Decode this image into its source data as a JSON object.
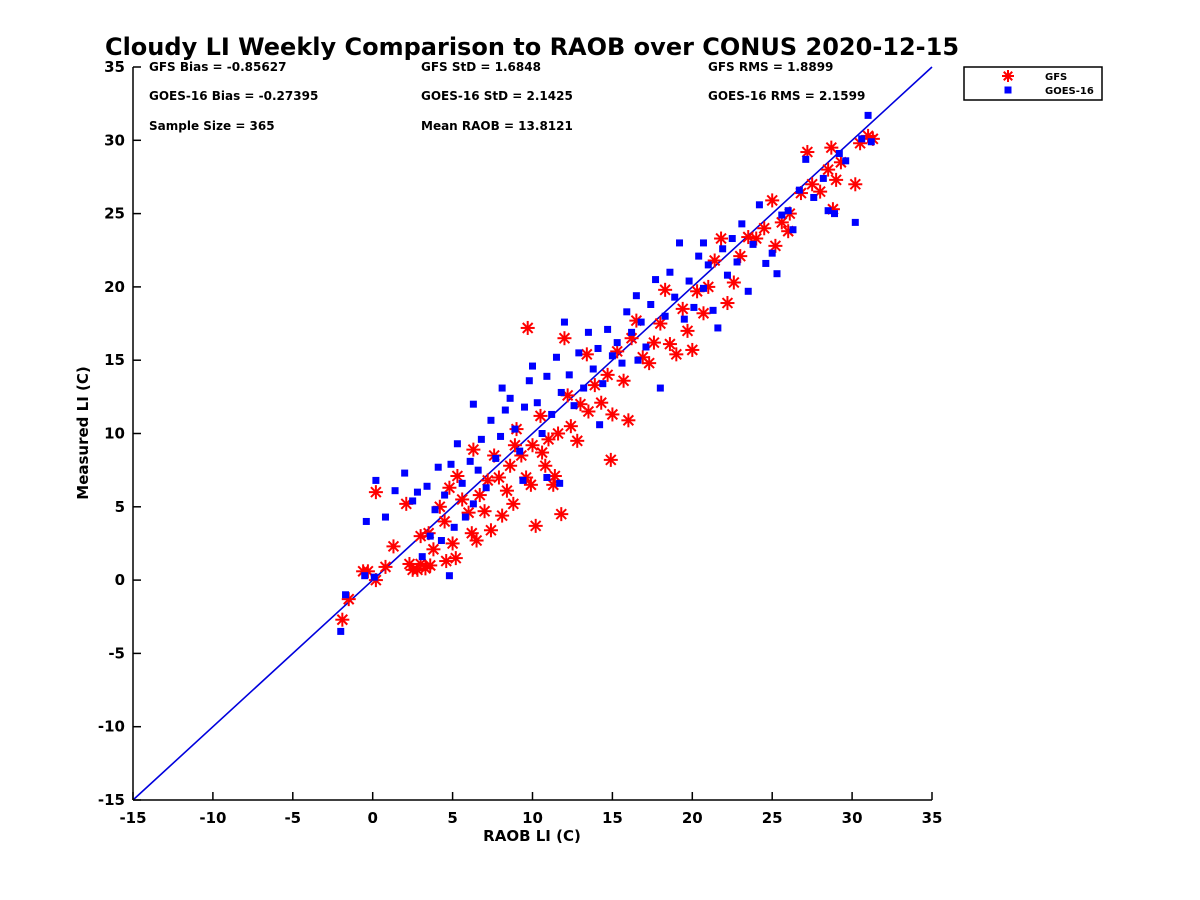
{
  "chart_data": {
    "type": "scatter",
    "title": "Cloudy LI Weekly Comparison to RAOB over CONUS 2020-12-15",
    "xlabel": "RAOB LI (C)",
    "ylabel": "Measured LI (C)",
    "xlim": [
      -15,
      35
    ],
    "ylim": [
      -15,
      35
    ],
    "xticks": [
      -15,
      -10,
      -5,
      0,
      5,
      10,
      15,
      20,
      25,
      30,
      35
    ],
    "yticks": [
      -15,
      -10,
      -5,
      0,
      5,
      10,
      15,
      20,
      25,
      30,
      35
    ],
    "grid": false,
    "legend_position": "outside-top-right",
    "reference_line": {
      "x": [
        -15,
        35
      ],
      "y": [
        -15,
        35
      ],
      "color": "#0000dd"
    },
    "stats": [
      {
        "id": "gfs-bias",
        "text": "GFS Bias = -0.85627",
        "col": 0,
        "row": 0
      },
      {
        "id": "gfs-std",
        "text": "GFS StD = 1.6848",
        "col": 1,
        "row": 0
      },
      {
        "id": "gfs-rms",
        "text": "GFS RMS = 1.8899",
        "col": 2,
        "row": 0
      },
      {
        "id": "goes-bias",
        "text": "GOES-16 Bias = -0.27395",
        "col": 0,
        "row": 1
      },
      {
        "id": "goes-std",
        "text": "GOES-16 StD = 2.1425",
        "col": 1,
        "row": 1
      },
      {
        "id": "goes-rms",
        "text": "GOES-16 RMS = 2.1599",
        "col": 2,
        "row": 1
      },
      {
        "id": "sample-size",
        "text": "Sample Size = 365",
        "col": 0,
        "row": 2
      },
      {
        "id": "mean-raob",
        "text": "Mean RAOB = 13.8121",
        "col": 1,
        "row": 2
      }
    ],
    "series": [
      {
        "name": "GFS",
        "marker": "asterisk",
        "color": "#ff0000",
        "points": [
          [
            -1.9,
            -2.7
          ],
          [
            -1.5,
            -1.3
          ],
          [
            -0.6,
            0.6
          ],
          [
            -0.3,
            0.6
          ],
          [
            0.2,
            0.0
          ],
          [
            0.2,
            6.0
          ],
          [
            0.8,
            0.9
          ],
          [
            1.3,
            2.3
          ],
          [
            2.1,
            5.2
          ],
          [
            2.3,
            1.1
          ],
          [
            2.5,
            0.7
          ],
          [
            2.8,
            0.7
          ],
          [
            3.0,
            1.1
          ],
          [
            3.0,
            3.0
          ],
          [
            3.3,
            0.8
          ],
          [
            3.5,
            3.2
          ],
          [
            3.6,
            1.0
          ],
          [
            3.8,
            2.1
          ],
          [
            4.2,
            5.0
          ],
          [
            4.5,
            4.0
          ],
          [
            4.6,
            1.3
          ],
          [
            4.8,
            6.3
          ],
          [
            5.0,
            2.5
          ],
          [
            5.2,
            1.5
          ],
          [
            5.3,
            7.1
          ],
          [
            5.6,
            5.5
          ],
          [
            6.0,
            4.6
          ],
          [
            6.2,
            3.2
          ],
          [
            6.5,
            2.7
          ],
          [
            6.3,
            8.9
          ],
          [
            6.7,
            5.8
          ],
          [
            7.0,
            4.7
          ],
          [
            7.2,
            6.8
          ],
          [
            7.4,
            3.4
          ],
          [
            7.6,
            8.5
          ],
          [
            7.9,
            7.0
          ],
          [
            8.1,
            4.4
          ],
          [
            8.4,
            6.1
          ],
          [
            8.6,
            7.8
          ],
          [
            8.8,
            5.2
          ],
          [
            9.0,
            10.3
          ],
          [
            9.3,
            8.5
          ],
          [
            9.6,
            7.0
          ],
          [
            9.7,
            17.2
          ],
          [
            9.9,
            6.5
          ],
          [
            10.2,
            3.7
          ],
          [
            10.0,
            9.2
          ],
          [
            10.5,
            11.2
          ],
          [
            10.8,
            7.8
          ],
          [
            11.0,
            9.6
          ],
          [
            11.3,
            6.5
          ],
          [
            11.6,
            10.0
          ],
          [
            11.8,
            4.5
          ],
          [
            12.0,
            16.5
          ],
          [
            12.2,
            12.6
          ],
          [
            12.4,
            10.5
          ],
          [
            12.8,
            9.5
          ],
          [
            13.0,
            12.0
          ],
          [
            13.4,
            15.4
          ],
          [
            13.5,
            11.5
          ],
          [
            13.9,
            13.3
          ],
          [
            14.3,
            12.1
          ],
          [
            14.7,
            14.0
          ],
          [
            14.9,
            8.2
          ],
          [
            15.0,
            11.3
          ],
          [
            15.3,
            15.6
          ],
          [
            15.7,
            13.6
          ],
          [
            16.0,
            10.9
          ],
          [
            16.2,
            16.5
          ],
          [
            16.5,
            17.7
          ],
          [
            16.9,
            15.2
          ],
          [
            17.3,
            14.8
          ],
          [
            17.6,
            16.2
          ],
          [
            18.0,
            17.5
          ],
          [
            18.3,
            19.8
          ],
          [
            18.6,
            16.1
          ],
          [
            19.0,
            15.4
          ],
          [
            19.4,
            18.5
          ],
          [
            19.7,
            17.0
          ],
          [
            20.0,
            15.7
          ],
          [
            20.3,
            19.7
          ],
          [
            20.7,
            18.2
          ],
          [
            21.0,
            20.0
          ],
          [
            21.4,
            21.8
          ],
          [
            21.8,
            23.3
          ],
          [
            22.2,
            18.9
          ],
          [
            22.6,
            20.3
          ],
          [
            23.0,
            22.1
          ],
          [
            23.5,
            23.4
          ],
          [
            24.0,
            23.3
          ],
          [
            24.5,
            24.0
          ],
          [
            25.0,
            25.9
          ],
          [
            25.2,
            22.8
          ],
          [
            25.6,
            24.4
          ],
          [
            26.0,
            23.8
          ],
          [
            26.1,
            25.0
          ],
          [
            26.8,
            26.4
          ],
          [
            27.2,
            29.2
          ],
          [
            27.5,
            27.0
          ],
          [
            28.0,
            26.5
          ],
          [
            28.5,
            28.0
          ],
          [
            28.8,
            25.3
          ],
          [
            28.7,
            29.5
          ],
          [
            29.0,
            27.3
          ],
          [
            29.3,
            28.5
          ],
          [
            30.2,
            27.0
          ],
          [
            30.5,
            29.8
          ],
          [
            31.0,
            30.3
          ],
          [
            31.3,
            30.1
          ],
          [
            10.6,
            8.7
          ],
          [
            11.4,
            7.1
          ],
          [
            8.9,
            9.2
          ]
        ]
      },
      {
        "name": "GOES-16",
        "marker": "square",
        "color": "#0000ff",
        "points": [
          [
            -2.0,
            -3.5
          ],
          [
            -1.7,
            -1.0
          ],
          [
            -0.5,
            0.3
          ],
          [
            -0.4,
            4.0
          ],
          [
            0.1,
            0.2
          ],
          [
            0.2,
            6.8
          ],
          [
            0.8,
            4.3
          ],
          [
            1.4,
            6.1
          ],
          [
            2.0,
            7.3
          ],
          [
            2.5,
            5.4
          ],
          [
            2.8,
            6.0
          ],
          [
            3.1,
            1.6
          ],
          [
            3.4,
            6.4
          ],
          [
            3.6,
            3.0
          ],
          [
            3.9,
            4.8
          ],
          [
            4.1,
            7.7
          ],
          [
            4.3,
            2.7
          ],
          [
            4.5,
            5.8
          ],
          [
            4.8,
            0.3
          ],
          [
            4.9,
            7.9
          ],
          [
            5.1,
            3.6
          ],
          [
            5.3,
            9.3
          ],
          [
            5.6,
            6.6
          ],
          [
            5.8,
            4.3
          ],
          [
            6.1,
            8.1
          ],
          [
            6.3,
            5.2
          ],
          [
            6.6,
            7.5
          ],
          [
            6.8,
            9.6
          ],
          [
            7.1,
            6.3
          ],
          [
            7.4,
            10.9
          ],
          [
            7.7,
            8.3
          ],
          [
            8.0,
            9.8
          ],
          [
            8.3,
            11.6
          ],
          [
            8.6,
            12.4
          ],
          [
            8.9,
            10.3
          ],
          [
            9.2,
            8.8
          ],
          [
            9.5,
            11.8
          ],
          [
            9.8,
            13.6
          ],
          [
            10.0,
            14.6
          ],
          [
            10.3,
            12.1
          ],
          [
            10.6,
            10.0
          ],
          [
            10.9,
            13.9
          ],
          [
            11.2,
            11.3
          ],
          [
            11.5,
            15.2
          ],
          [
            11.8,
            12.8
          ],
          [
            12.0,
            17.6
          ],
          [
            12.3,
            14.0
          ],
          [
            12.6,
            11.9
          ],
          [
            12.9,
            15.5
          ],
          [
            13.2,
            13.1
          ],
          [
            13.5,
            16.9
          ],
          [
            13.8,
            14.4
          ],
          [
            14.1,
            15.8
          ],
          [
            14.4,
            13.4
          ],
          [
            14.7,
            17.1
          ],
          [
            15.0,
            15.3
          ],
          [
            15.3,
            16.2
          ],
          [
            15.6,
            14.8
          ],
          [
            15.9,
            18.3
          ],
          [
            16.2,
            16.9
          ],
          [
            16.5,
            19.4
          ],
          [
            16.8,
            17.6
          ],
          [
            17.1,
            15.9
          ],
          [
            17.4,
            18.8
          ],
          [
            17.7,
            20.5
          ],
          [
            18.0,
            13.1
          ],
          [
            18.3,
            18.0
          ],
          [
            18.6,
            21.0
          ],
          [
            18.9,
            19.3
          ],
          [
            19.2,
            23.0
          ],
          [
            19.5,
            17.8
          ],
          [
            19.8,
            20.4
          ],
          [
            20.1,
            18.6
          ],
          [
            20.4,
            22.1
          ],
          [
            20.7,
            19.9
          ],
          [
            21.0,
            21.5
          ],
          [
            21.3,
            18.4
          ],
          [
            21.6,
            17.2
          ],
          [
            21.9,
            22.6
          ],
          [
            22.2,
            20.8
          ],
          [
            22.5,
            23.3
          ],
          [
            22.8,
            21.7
          ],
          [
            23.1,
            24.3
          ],
          [
            23.5,
            19.7
          ],
          [
            23.8,
            22.9
          ],
          [
            24.2,
            25.6
          ],
          [
            24.6,
            21.6
          ],
          [
            25.0,
            22.3
          ],
          [
            25.3,
            20.9
          ],
          [
            25.6,
            24.9
          ],
          [
            26.0,
            25.2
          ],
          [
            26.3,
            23.9
          ],
          [
            26.7,
            26.6
          ],
          [
            27.1,
            28.7
          ],
          [
            27.6,
            26.1
          ],
          [
            28.2,
            27.4
          ],
          [
            28.5,
            25.2
          ],
          [
            28.9,
            25.0
          ],
          [
            29.2,
            29.1
          ],
          [
            29.6,
            28.6
          ],
          [
            30.2,
            24.4
          ],
          [
            30.6,
            30.1
          ],
          [
            31.0,
            31.7
          ],
          [
            31.2,
            29.9
          ],
          [
            9.4,
            6.8
          ],
          [
            10.9,
            7.0
          ],
          [
            11.7,
            6.6
          ],
          [
            8.1,
            13.1
          ],
          [
            6.3,
            12.0
          ],
          [
            14.2,
            10.6
          ],
          [
            16.6,
            15.0
          ],
          [
            20.7,
            23.0
          ]
        ]
      }
    ]
  }
}
